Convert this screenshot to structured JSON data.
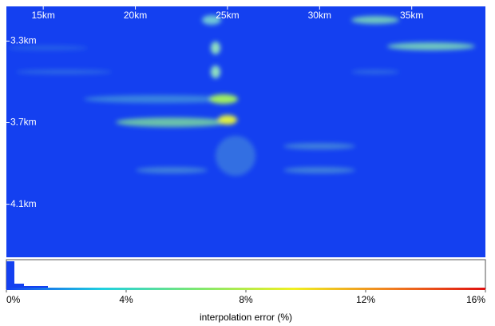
{
  "chart_data": {
    "type": "heatmap",
    "xlim": [
      13,
      39
    ],
    "xticks": [
      {
        "value": 15,
        "label": "15km"
      },
      {
        "value": 20,
        "label": "20km"
      },
      {
        "value": 25,
        "label": "25km"
      },
      {
        "value": 30,
        "label": "30km"
      },
      {
        "value": 35,
        "label": "35km"
      }
    ],
    "ylim": [
      3.13,
      4.36
    ],
    "yticks": [
      {
        "value": 3.3,
        "label": "3.3km"
      },
      {
        "value": 3.7,
        "label": "3.7km"
      },
      {
        "value": 4.1,
        "label": "4.1km"
      }
    ],
    "colorbar": {
      "label": "interpolation error (%)",
      "lim": [
        0,
        16
      ],
      "ticks": [
        {
          "value": 0,
          "label": "0%"
        },
        {
          "value": 4,
          "label": "4%"
        },
        {
          "value": 8,
          "label": "8%"
        },
        {
          "value": 12,
          "label": "12%"
        },
        {
          "value": 16,
          "label": "16%"
        }
      ],
      "colors": [
        "#1440f0",
        "#1ed0e0",
        "#7de870",
        "#f0f020",
        "#f08020",
        "#e01010"
      ]
    }
  }
}
